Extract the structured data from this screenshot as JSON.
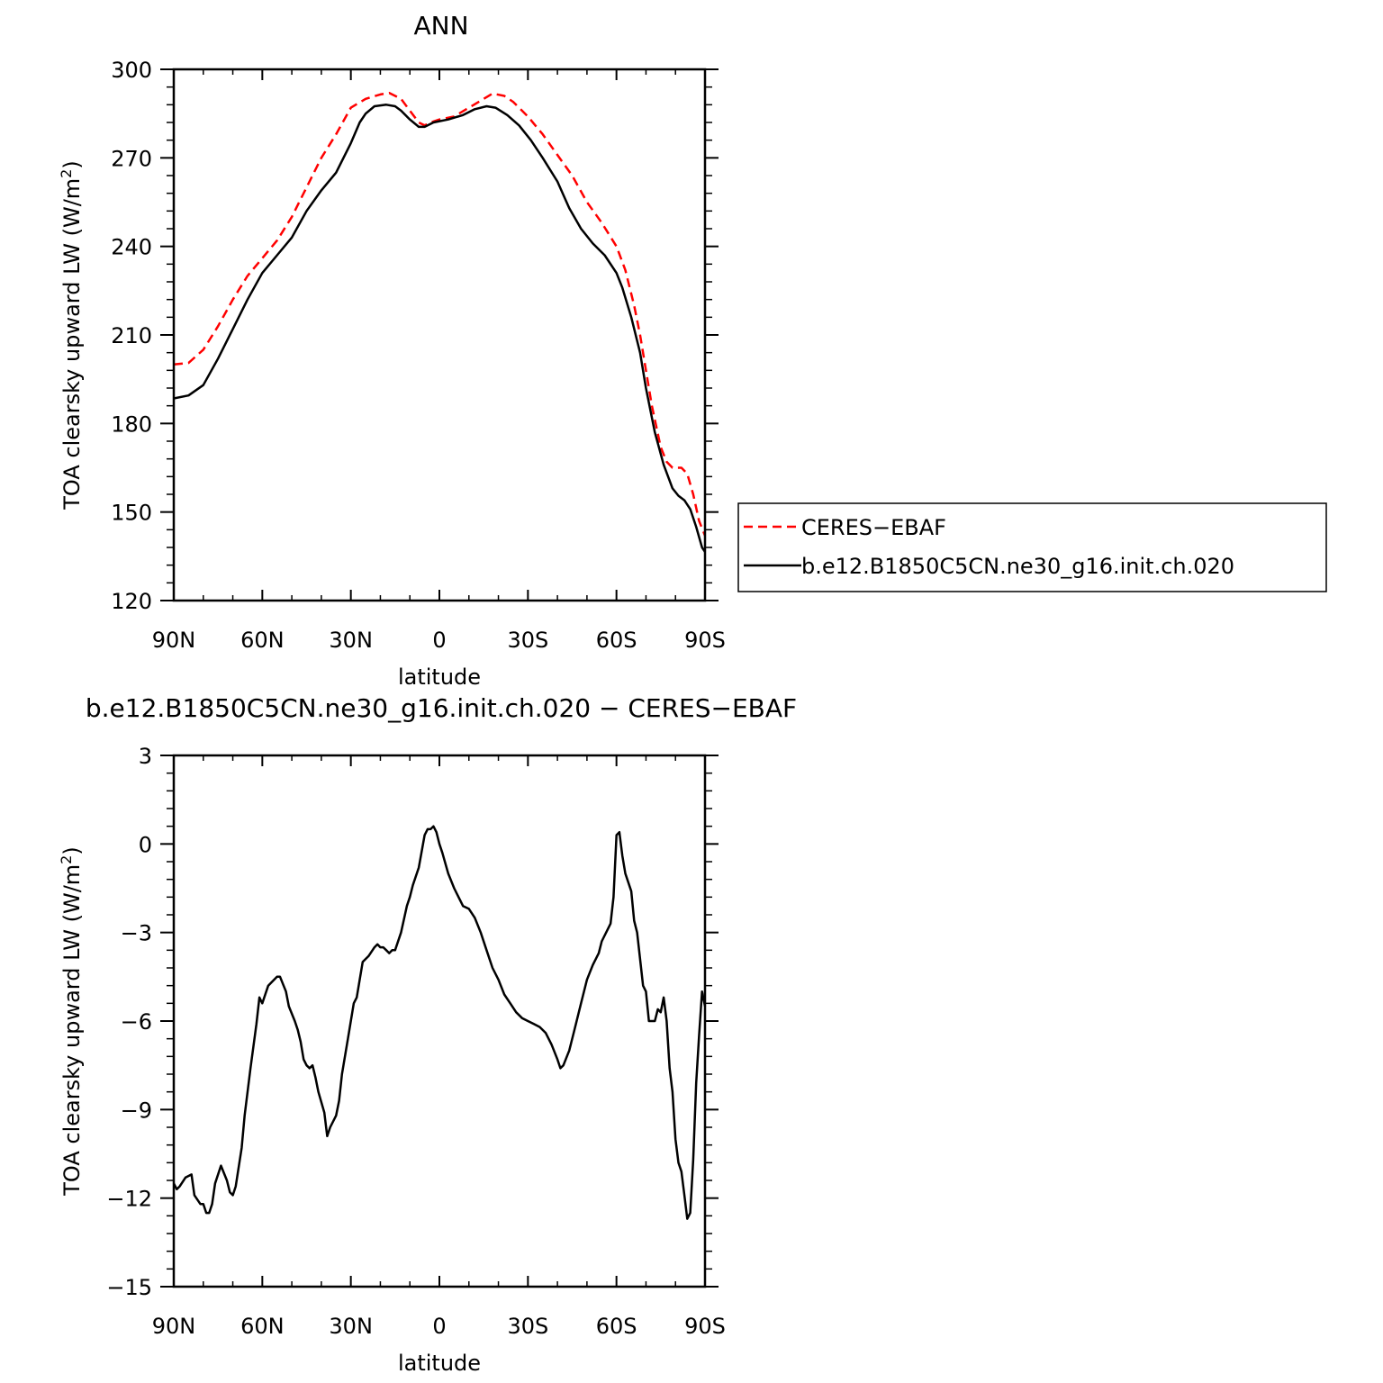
{
  "chart_data": [
    {
      "type": "line",
      "title": "ANN",
      "xlabel": "latitude",
      "ylabel": "TOA clearsky upward LW (W/m²)",
      "ylabel_main": "TOA clearsky upward LW (W/m",
      "ylabel_sup": "2",
      "ylabel_close": ")",
      "xlim": [
        90,
        -90
      ],
      "ylim": [
        120,
        300
      ],
      "xticks": [
        {
          "v": 90,
          "label": "90N"
        },
        {
          "v": 60,
          "label": "60N"
        },
        {
          "v": 30,
          "label": "30N"
        },
        {
          "v": 0,
          "label": "0"
        },
        {
          "v": -30,
          "label": "30S"
        },
        {
          "v": -60,
          "label": "60S"
        },
        {
          "v": -90,
          "label": "90S"
        }
      ],
      "yticks": [
        120,
        150,
        180,
        210,
        240,
        270,
        300
      ],
      "series": [
        {
          "name": "CERES−EBAF",
          "color": "#ff0000",
          "dash": true,
          "points": [
            [
              90,
              200
            ],
            [
              85,
              200.5
            ],
            [
              80,
              205
            ],
            [
              75,
              213
            ],
            [
              70,
              222
            ],
            [
              65,
              230
            ],
            [
              60,
              236
            ],
            [
              55,
              242
            ],
            [
              50,
              250
            ],
            [
              45,
              260
            ],
            [
              40,
              270
            ],
            [
              35,
              278
            ],
            [
              30,
              287
            ],
            [
              25,
              290
            ],
            [
              20,
              291.5
            ],
            [
              17,
              292
            ],
            [
              13,
              290
            ],
            [
              10,
              286
            ],
            [
              7,
              282
            ],
            [
              5,
              281
            ],
            [
              3,
              282
            ],
            [
              0,
              283
            ],
            [
              -5,
              284
            ],
            [
              -10,
              287
            ],
            [
              -15,
              290
            ],
            [
              -18,
              291.8
            ],
            [
              -22,
              291
            ],
            [
              -25,
              289
            ],
            [
              -30,
              284
            ],
            [
              -35,
              278
            ],
            [
              -40,
              271
            ],
            [
              -45,
              264
            ],
            [
              -50,
              255
            ],
            [
              -55,
              248
            ],
            [
              -60,
              240
            ],
            [
              -63,
              232
            ],
            [
              -66,
              220
            ],
            [
              -68,
              210
            ],
            [
              -70,
              198
            ],
            [
              -72,
              186
            ],
            [
              -75,
              172
            ],
            [
              -77,
              167
            ],
            [
              -79,
              165
            ],
            [
              -82,
              165
            ],
            [
              -84,
              163
            ],
            [
              -86,
              156
            ],
            [
              -88,
              147
            ],
            [
              -90,
              142
            ]
          ]
        },
        {
          "name": "b.e12.B1850C5CN.ne30_g16.init.ch.020",
          "color": "#000000",
          "dash": false,
          "points": [
            [
              90,
              188.5
            ],
            [
              85,
              189.5
            ],
            [
              80,
              193
            ],
            [
              75,
              202
            ],
            [
              70,
              212
            ],
            [
              65,
              222
            ],
            [
              60,
              231
            ],
            [
              55,
              237
            ],
            [
              50,
              243
            ],
            [
              45,
              252
            ],
            [
              40,
              259
            ],
            [
              35,
              265
            ],
            [
              30,
              275
            ],
            [
              27,
              282
            ],
            [
              25,
              285
            ],
            [
              22,
              287.5
            ],
            [
              18,
              288
            ],
            [
              15,
              287.5
            ],
            [
              13,
              286
            ],
            [
              10,
              283
            ],
            [
              7,
              280.5
            ],
            [
              5,
              280.5
            ],
            [
              2,
              282
            ],
            [
              -3,
              283
            ],
            [
              -8,
              284.5
            ],
            [
              -12,
              286.5
            ],
            [
              -16,
              287.5
            ],
            [
              -19,
              287
            ],
            [
              -23,
              284.5
            ],
            [
              -27,
              281
            ],
            [
              -31,
              276
            ],
            [
              -35,
              270
            ],
            [
              -40,
              262
            ],
            [
              -44,
              253
            ],
            [
              -48,
              246
            ],
            [
              -52,
              241
            ],
            [
              -56,
              237
            ],
            [
              -60,
              231
            ],
            [
              -62,
              226
            ],
            [
              -65,
              216
            ],
            [
              -68,
              204
            ],
            [
              -70,
              192
            ],
            [
              -73,
              177
            ],
            [
              -76,
              166
            ],
            [
              -79,
              158
            ],
            [
              -81,
              155.5
            ],
            [
              -83,
              154
            ],
            [
              -85,
              151
            ],
            [
              -87,
              145
            ],
            [
              -89,
              138
            ],
            [
              -90,
              136.5
            ]
          ]
        }
      ],
      "legend": {
        "placement": "right"
      }
    },
    {
      "type": "line",
      "title": "b.e12.B1850C5CN.ne30_g16.init.ch.020 − CERES−EBAF",
      "xlabel": "latitude",
      "ylabel": "TOA clearsky upward LW (W/m²)",
      "ylabel_main": "TOA clearsky upward LW (W/m",
      "ylabel_sup": "2",
      "ylabel_close": ")",
      "xlim": [
        90,
        -90
      ],
      "ylim": [
        -15,
        3
      ],
      "xticks": [
        {
          "v": 90,
          "label": "90N"
        },
        {
          "v": 60,
          "label": "60N"
        },
        {
          "v": 30,
          "label": "30N"
        },
        {
          "v": 0,
          "label": "0"
        },
        {
          "v": -30,
          "label": "30S"
        },
        {
          "v": -60,
          "label": "60S"
        },
        {
          "v": -90,
          "label": "90S"
        }
      ],
      "yticks": [
        3,
        0,
        -3,
        -6,
        -9,
        -12,
        -15
      ],
      "yticklabels": [
        "3",
        "0",
        "−3",
        "−6",
        "−9",
        "−12",
        "−15"
      ],
      "series": [
        {
          "name": "",
          "color": "#000000",
          "dash": false,
          "points": [
            [
              90,
              -11.5
            ],
            [
              89,
              -11.7
            ],
            [
              88,
              -11.6
            ],
            [
              86,
              -11.3
            ],
            [
              84,
              -11.2
            ],
            [
              83,
              -11.9
            ],
            [
              81,
              -12.2
            ],
            [
              80,
              -12.2
            ],
            [
              79,
              -12.5
            ],
            [
              78,
              -12.5
            ],
            [
              77,
              -12.2
            ],
            [
              76,
              -11.5
            ],
            [
              74,
              -10.9
            ],
            [
              72,
              -11.4
            ],
            [
              71,
              -11.8
            ],
            [
              70,
              -11.9
            ],
            [
              69,
              -11.6
            ],
            [
              67,
              -10.3
            ],
            [
              66,
              -9.2
            ],
            [
              64,
              -7.6
            ],
            [
              62,
              -6.1
            ],
            [
              61,
              -5.2
            ],
            [
              60,
              -5.4
            ],
            [
              59,
              -5.1
            ],
            [
              58,
              -4.8
            ],
            [
              56,
              -4.6
            ],
            [
              55,
              -4.5
            ],
            [
              54,
              -4.5
            ],
            [
              52,
              -5.0
            ],
            [
              51,
              -5.5
            ],
            [
              49,
              -6.0
            ],
            [
              48,
              -6.3
            ],
            [
              47,
              -6.7
            ],
            [
              46,
              -7.3
            ],
            [
              45,
              -7.5
            ],
            [
              44,
              -7.6
            ],
            [
              43,
              -7.5
            ],
            [
              42,
              -7.9
            ],
            [
              41,
              -8.4
            ],
            [
              39,
              -9.1
            ],
            [
              38,
              -9.9
            ],
            [
              37,
              -9.6
            ],
            [
              35,
              -9.2
            ],
            [
              34,
              -8.7
            ],
            [
              33,
              -7.8
            ],
            [
              31,
              -6.6
            ],
            [
              29,
              -5.4
            ],
            [
              28,
              -5.2
            ],
            [
              27,
              -4.6
            ],
            [
              26,
              -4.0
            ],
            [
              24,
              -3.8
            ],
            [
              22,
              -3.5
            ],
            [
              21,
              -3.4
            ],
            [
              20,
              -3.5
            ],
            [
              19,
              -3.5
            ],
            [
              18,
              -3.6
            ],
            [
              17,
              -3.7
            ],
            [
              16,
              -3.6
            ],
            [
              15,
              -3.6
            ],
            [
              13,
              -3.0
            ],
            [
              11,
              -2.1
            ],
            [
              10,
              -1.8
            ],
            [
              9,
              -1.4
            ],
            [
              7,
              -0.8
            ],
            [
              5,
              0.3
            ],
            [
              4,
              0.5
            ],
            [
              3,
              0.5
            ],
            [
              2,
              0.6
            ],
            [
              1,
              0.4
            ],
            [
              0,
              0.0
            ],
            [
              -1,
              -0.3
            ],
            [
              -3,
              -1.0
            ],
            [
              -5,
              -1.5
            ],
            [
              -7,
              -1.9
            ],
            [
              -8,
              -2.1
            ],
            [
              -10,
              -2.2
            ],
            [
              -12,
              -2.5
            ],
            [
              -14,
              -3.0
            ],
            [
              -16,
              -3.6
            ],
            [
              -18,
              -4.2
            ],
            [
              -20,
              -4.6
            ],
            [
              -22,
              -5.1
            ],
            [
              -24,
              -5.4
            ],
            [
              -26,
              -5.7
            ],
            [
              -28,
              -5.9
            ],
            [
              -30,
              -6.0
            ],
            [
              -32,
              -6.1
            ],
            [
              -34,
              -6.2
            ],
            [
              -36,
              -6.4
            ],
            [
              -38,
              -6.8
            ],
            [
              -40,
              -7.3
            ],
            [
              -41,
              -7.6
            ],
            [
              -42,
              -7.5
            ],
            [
              -44,
              -7.0
            ],
            [
              -46,
              -6.2
            ],
            [
              -48,
              -5.4
            ],
            [
              -50,
              -4.6
            ],
            [
              -52,
              -4.1
            ],
            [
              -54,
              -3.7
            ],
            [
              -55,
              -3.3
            ],
            [
              -57,
              -2.9
            ],
            [
              -58,
              -2.7
            ],
            [
              -59,
              -1.8
            ],
            [
              -60,
              0.3
            ],
            [
              -61,
              0.4
            ],
            [
              -62,
              -0.4
            ],
            [
              -63,
              -1.0
            ],
            [
              -65,
              -1.6
            ],
            [
              -66,
              -2.6
            ],
            [
              -67,
              -3.0
            ],
            [
              -68,
              -3.9
            ],
            [
              -69,
              -4.8
            ],
            [
              -70,
              -5.0
            ],
            [
              -71,
              -6.0
            ],
            [
              -72,
              -6.0
            ],
            [
              -73,
              -6.0
            ],
            [
              -74,
              -5.6
            ],
            [
              -75,
              -5.7
            ],
            [
              -76,
              -5.2
            ],
            [
              -77,
              -6.0
            ],
            [
              -78,
              -7.6
            ],
            [
              -79,
              -8.4
            ],
            [
              -80,
              -10.0
            ],
            [
              -81,
              -10.8
            ],
            [
              -82,
              -11.1
            ],
            [
              -83,
              -11.9
            ],
            [
              -84,
              -12.7
            ],
            [
              -85,
              -12.5
            ],
            [
              -86,
              -10.7
            ],
            [
              -87,
              -8.1
            ],
            [
              -88,
              -6.5
            ],
            [
              -89,
              -5.0
            ],
            [
              -90,
              -5.5
            ]
          ]
        }
      ]
    }
  ]
}
